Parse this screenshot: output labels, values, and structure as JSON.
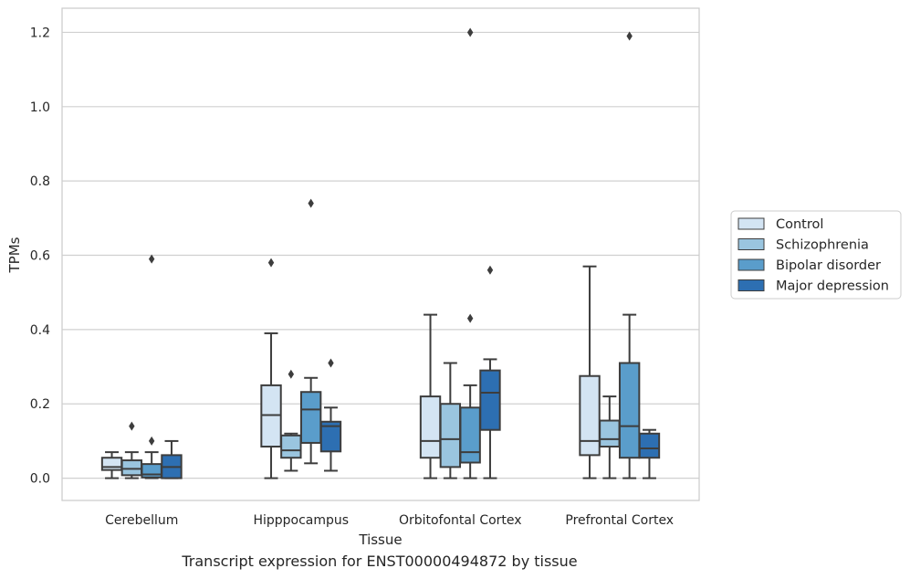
{
  "caption": "Transcript expression for ENST00000494872 by tissue",
  "chart_data": {
    "type": "box",
    "xlabel": "Tissue",
    "ylabel": "TPMs",
    "ylim": [
      -0.06,
      1.265
    ],
    "yticks": [
      0.0,
      0.2,
      0.4,
      0.6,
      0.8,
      1.0,
      1.2
    ],
    "ytick_labels": [
      "0.0",
      "0.2",
      "0.4",
      "0.6",
      "0.8",
      "1.0",
      "1.2"
    ],
    "grid": "horizontal",
    "legend_position": "right",
    "categories": [
      "Cerebellum",
      "Hipppocampus",
      "Orbitofontal Cortex",
      "Prefrontal Cortex"
    ],
    "series": [
      {
        "name": "Control",
        "color": "#d3e4f3",
        "boxes": [
          {
            "whislo": 0.0,
            "q1": 0.022,
            "med": 0.03,
            "q3": 0.055,
            "whishi": 0.07,
            "fliers": []
          },
          {
            "whislo": 0.0,
            "q1": 0.085,
            "med": 0.17,
            "q3": 0.25,
            "whishi": 0.39,
            "fliers": [
              0.58
            ]
          },
          {
            "whislo": 0.0,
            "q1": 0.055,
            "med": 0.1,
            "q3": 0.22,
            "whishi": 0.44,
            "fliers": []
          },
          {
            "whislo": 0.0,
            "q1": 0.062,
            "med": 0.1,
            "q3": 0.275,
            "whishi": 0.57,
            "fliers": []
          }
        ]
      },
      {
        "name": "Schizophrenia",
        "color": "#9ac5df",
        "boxes": [
          {
            "whislo": 0.0,
            "q1": 0.008,
            "med": 0.025,
            "q3": 0.048,
            "whishi": 0.07,
            "fliers": [
              0.14
            ]
          },
          {
            "whislo": 0.02,
            "q1": 0.055,
            "med": 0.075,
            "q3": 0.115,
            "whishi": 0.12,
            "fliers": [
              0.28
            ]
          },
          {
            "whislo": 0.0,
            "q1": 0.03,
            "med": 0.105,
            "q3": 0.2,
            "whishi": 0.31,
            "fliers": []
          },
          {
            "whislo": 0.0,
            "q1": 0.085,
            "med": 0.105,
            "q3": 0.155,
            "whishi": 0.22,
            "fliers": []
          }
        ]
      },
      {
        "name": "Bipolar disorder",
        "color": "#5a9dcb",
        "boxes": [
          {
            "whislo": 0.0,
            "q1": 0.002,
            "med": 0.01,
            "q3": 0.038,
            "whishi": 0.07,
            "fliers": [
              0.1,
              0.59
            ]
          },
          {
            "whislo": 0.04,
            "q1": 0.095,
            "med": 0.185,
            "q3": 0.232,
            "whishi": 0.27,
            "fliers": [
              0.74
            ]
          },
          {
            "whislo": 0.0,
            "q1": 0.042,
            "med": 0.07,
            "q3": 0.19,
            "whishi": 0.25,
            "fliers": [
              0.43,
              1.2
            ]
          },
          {
            "whislo": 0.0,
            "q1": 0.055,
            "med": 0.14,
            "q3": 0.31,
            "whishi": 0.44,
            "fliers": [
              1.19
            ]
          }
        ]
      },
      {
        "name": "Major depression",
        "color": "#2d6fb2",
        "boxes": [
          {
            "whislo": 0.0,
            "q1": 0.0,
            "med": 0.03,
            "q3": 0.062,
            "whishi": 0.1,
            "fliers": []
          },
          {
            "whislo": 0.02,
            "q1": 0.072,
            "med": 0.14,
            "q3": 0.152,
            "whishi": 0.19,
            "fliers": [
              0.31
            ]
          },
          {
            "whislo": 0.0,
            "q1": 0.13,
            "med": 0.23,
            "q3": 0.29,
            "whishi": 0.32,
            "fliers": [
              0.56
            ]
          },
          {
            "whislo": 0.0,
            "q1": 0.055,
            "med": 0.08,
            "q3": 0.12,
            "whishi": 0.13,
            "fliers": []
          }
        ]
      }
    ]
  }
}
